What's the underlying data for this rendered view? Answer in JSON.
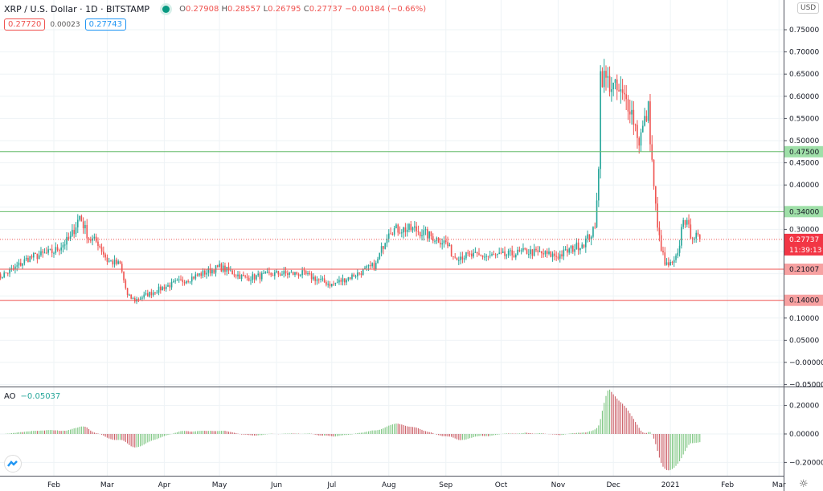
{
  "header": {
    "symbol": "XRP / U.S. Dollar · 1D · BITSTAMP",
    "open_label": "O",
    "open": "0.27908",
    "high_label": "H",
    "high": "0.28557",
    "low_label": "L",
    "low": "0.26795",
    "close_label": "C",
    "close": "0.27737",
    "change": "−0.00184 (−0.66%)",
    "status_color": "#089981"
  },
  "quote": {
    "bid": "0.27720",
    "spread": "0.00023",
    "ask": "0.27743"
  },
  "currency": "USD",
  "indicator": {
    "name": "AO",
    "value": "−0.05037"
  },
  "colors": {
    "up": "#26a69a",
    "down": "#ef5350",
    "support": "#ef5350",
    "resistance": "#66bb6a"
  },
  "chart_data": {
    "type": "candlestick",
    "price_axis": {
      "ticks": [
        "0.75000",
        "0.70000",
        "0.65000",
        "0.60000",
        "0.55000",
        "0.50000",
        "0.45000",
        "0.40000",
        "0.30000",
        "0.10000",
        "0.05000",
        "−0.00000",
        "−0.05000"
      ],
      "range": [
        -0.05,
        0.79
      ]
    },
    "ao_axis": {
      "ticks": [
        "0.20000",
        "0.00000",
        "−0.20000"
      ],
      "range": [
        -0.28,
        0.3
      ]
    },
    "time_axis": {
      "ticks": [
        "Feb",
        "Mar",
        "Apr",
        "May",
        "Jun",
        "Jul",
        "Aug",
        "Sep",
        "Oct",
        "Nov",
        "Dec",
        "2021",
        "Feb",
        "Mar"
      ],
      "tick_dates": [
        "2020-02-01",
        "2020-03-01",
        "2020-04-01",
        "2020-05-01",
        "2020-06-01",
        "2020-07-01",
        "2020-08-01",
        "2020-09-01",
        "2020-10-01",
        "2020-11-01",
        "2020-12-01",
        "2021-01-01",
        "2021-02-01",
        "2021-03-01"
      ]
    },
    "horizontal_lines": [
      {
        "price": 0.475,
        "label": "0.47500",
        "color": "#66bb6a"
      },
      {
        "price": 0.34,
        "label": "0.34000",
        "color": "#66bb6a"
      },
      {
        "price": 0.21007,
        "label": "0.21007",
        "color": "#ef5350"
      },
      {
        "price": 0.14,
        "label": "0.14000",
        "color": "#ef5350"
      }
    ],
    "last_price": {
      "price": 0.27737,
      "label": "0.27737",
      "countdown": "11:39:13"
    },
    "close_path": [
      [
        "2020-01-01",
        0.19
      ],
      [
        "2020-01-10",
        0.21
      ],
      [
        "2020-01-18",
        0.235
      ],
      [
        "2020-02-01",
        0.25
      ],
      [
        "2020-02-10",
        0.28
      ],
      [
        "2020-02-15",
        0.33
      ],
      [
        "2020-02-20",
        0.28
      ],
      [
        "2020-02-25",
        0.27
      ],
      [
        "2020-03-01",
        0.23
      ],
      [
        "2020-03-08",
        0.22
      ],
      [
        "2020-03-12",
        0.15
      ],
      [
        "2020-03-16",
        0.14
      ],
      [
        "2020-04-01",
        0.17
      ],
      [
        "2020-04-15",
        0.19
      ],
      [
        "2020-05-01",
        0.215
      ],
      [
        "2020-05-15",
        0.19
      ],
      [
        "2020-06-01",
        0.2
      ],
      [
        "2020-06-15",
        0.2
      ],
      [
        "2020-07-01",
        0.175
      ],
      [
        "2020-07-15",
        0.2
      ],
      [
        "2020-07-25",
        0.22
      ],
      [
        "2020-08-01",
        0.3
      ],
      [
        "2020-08-15",
        0.3
      ],
      [
        "2020-09-01",
        0.27
      ],
      [
        "2020-09-05",
        0.24
      ],
      [
        "2020-09-15",
        0.24
      ],
      [
        "2020-10-01",
        0.24
      ],
      [
        "2020-10-15",
        0.25
      ],
      [
        "2020-11-01",
        0.24
      ],
      [
        "2020-11-15",
        0.27
      ],
      [
        "2020-11-21",
        0.3
      ],
      [
        "2020-11-23",
        0.45
      ],
      [
        "2020-11-24",
        0.65
      ],
      [
        "2020-12-01",
        0.62
      ],
      [
        "2020-12-10",
        0.58
      ],
      [
        "2020-12-15",
        0.5
      ],
      [
        "2020-12-20",
        0.57
      ],
      [
        "2020-12-22",
        0.45
      ],
      [
        "2020-12-25",
        0.3
      ],
      [
        "2020-12-29",
        0.22
      ],
      [
        "2021-01-02",
        0.22
      ],
      [
        "2021-01-05",
        0.24
      ],
      [
        "2021-01-08",
        0.33
      ],
      [
        "2021-01-12",
        0.29
      ],
      [
        "2021-01-17",
        0.277
      ]
    ]
  }
}
